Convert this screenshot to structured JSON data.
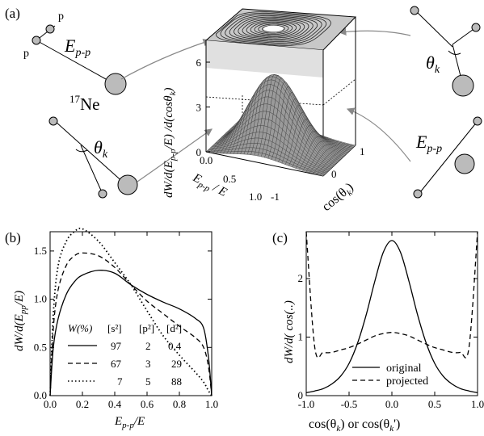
{
  "panels": {
    "a": "(a)",
    "b": "(b)",
    "c": "(c)"
  },
  "panel_a": {
    "nucleus_label": "17Ne",
    "nucleus_sup": "17",
    "nucleus_sym": "Ne",
    "p_label": "p",
    "e_pp_main": "E",
    "e_pp_sub": "p-p",
    "theta_main": "θ",
    "theta_sub": "k",
    "z_axis_label": "dW/d(E_p-p/E)/d(cosθ_k)",
    "x_axis_label": "E_p-p/E",
    "y_axis_label": "cos(θ_k)",
    "z_ticks": [
      "0",
      "3",
      "6"
    ],
    "x_ticks": [
      "0.0",
      "0.5",
      "1.0"
    ],
    "y_ticks": [
      "-1",
      "0",
      "1"
    ]
  },
  "legend_b": {
    "header": [
      "W(%)",
      "[s²]",
      "[p²]",
      "[d²]"
    ],
    "rows": [
      {
        "style": "solid",
        "values": [
          "97",
          "2",
          "0.4"
        ]
      },
      {
        "style": "dashed",
        "values": [
          "67",
          "3",
          "29"
        ]
      },
      {
        "style": "dotted",
        "values": [
          "7",
          "5",
          "88"
        ]
      }
    ]
  },
  "legend_c": {
    "entries": [
      {
        "style": "solid",
        "label": "original"
      },
      {
        "style": "dashed",
        "label": "projected"
      }
    ]
  },
  "chart_data": [
    {
      "panel": "a",
      "type": "surface",
      "xlabel": "E_p-p/E",
      "ylabel": "cos(θ_k)",
      "zlabel": "dW/d(E_p-p/E)/d(cosθ_k)",
      "xlim": [
        0.0,
        1.0
      ],
      "ylim": [
        -1,
        1
      ],
      "zlim": [
        0,
        6
      ],
      "x_ticks": [
        0.0,
        0.5,
        1.0
      ],
      "y_ticks": [
        -1,
        0,
        1
      ],
      "z_ticks": [
        0,
        3,
        6
      ],
      "peak": {
        "x": 0.35,
        "y": 0.0,
        "z": 6.3
      }
    },
    {
      "panel": "b",
      "type": "line",
      "xlabel": "E_p-p/E",
      "ylabel": "dW/d(E_pp/E)",
      "xlim": [
        0.0,
        1.0
      ],
      "ylim": [
        0.0,
        1.7
      ],
      "x_ticks": [
        "0.0",
        "0.2",
        "0.4",
        "0.6",
        "0.8",
        "1.0"
      ],
      "y_ticks": [
        "0.0",
        "0.5",
        "1.0",
        "1.5"
      ],
      "x": [
        0.0,
        0.02,
        0.05,
        0.1,
        0.15,
        0.2,
        0.3,
        0.4,
        0.5,
        0.6,
        0.7,
        0.8,
        0.9,
        0.95,
        0.98,
        1.0
      ],
      "series": [
        {
          "style": "solid",
          "values": [
            0.0,
            0.5,
            0.8,
            1.05,
            1.18,
            1.25,
            1.3,
            1.27,
            1.15,
            1.05,
            0.97,
            0.9,
            0.8,
            0.7,
            0.4,
            0.0
          ]
        },
        {
          "style": "dashed",
          "values": [
            0.0,
            0.7,
            1.1,
            1.35,
            1.45,
            1.48,
            1.45,
            1.33,
            1.15,
            0.98,
            0.85,
            0.72,
            0.6,
            0.5,
            0.3,
            0.0
          ]
        },
        {
          "style": "dotted",
          "values": [
            0.0,
            0.85,
            1.35,
            1.6,
            1.7,
            1.73,
            1.6,
            1.38,
            1.15,
            0.88,
            0.62,
            0.42,
            0.24,
            0.14,
            0.05,
            0.0
          ]
        }
      ]
    },
    {
      "panel": "c",
      "type": "line",
      "xlabel": "cos(θ_k) or cos(θ_k')",
      "ylabel": "dW/d(cos(..)",
      "xlim": [
        -1.0,
        1.0
      ],
      "ylim": [
        0.0,
        2.8
      ],
      "x_ticks": [
        "-1.0",
        "-0.5",
        "0.0",
        "0.5",
        "1.0"
      ],
      "y_ticks": [
        "0",
        "1",
        "2"
      ],
      "x": [
        -1.0,
        -0.9,
        -0.8,
        -0.7,
        -0.6,
        -0.5,
        -0.4,
        -0.3,
        -0.2,
        -0.1,
        0.0,
        0.1,
        0.2,
        0.3,
        0.4,
        0.5,
        0.6,
        0.7,
        0.8,
        0.9,
        1.0
      ],
      "series": [
        {
          "name": "original",
          "style": "solid",
          "values": [
            0.05,
            0.08,
            0.12,
            0.2,
            0.33,
            0.55,
            0.9,
            1.38,
            1.95,
            2.45,
            2.65,
            2.45,
            1.95,
            1.38,
            0.9,
            0.55,
            0.33,
            0.2,
            0.12,
            0.08,
            0.05
          ]
        },
        {
          "name": "projected",
          "style": "dashed",
          "values": [
            2.8,
            0.82,
            0.74,
            0.74,
            0.78,
            0.82,
            0.88,
            0.95,
            1.02,
            1.06,
            1.08,
            1.06,
            1.02,
            0.95,
            0.88,
            0.82,
            0.78,
            0.74,
            0.74,
            0.82,
            2.8
          ]
        }
      ]
    }
  ]
}
